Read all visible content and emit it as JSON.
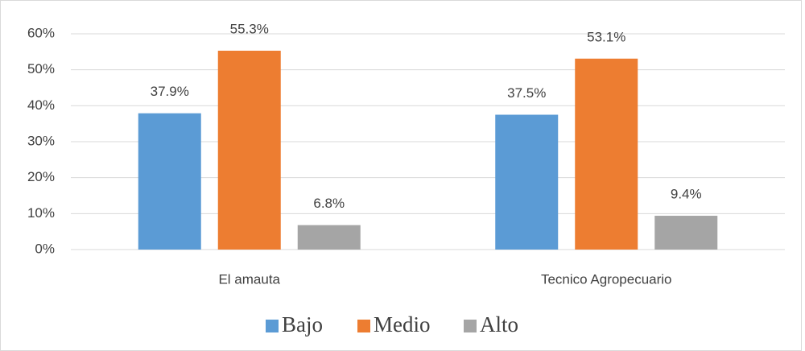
{
  "chart_data": {
    "type": "bar",
    "categories": [
      "El amauta",
      "Tecnico Agropecuario"
    ],
    "series": [
      {
        "name": "Bajo",
        "color": "#5b9bd5",
        "values": [
          37.9,
          37.5
        ],
        "value_labels": [
          "37.9%",
          "37.5%"
        ]
      },
      {
        "name": "Medio",
        "color": "#ed7d31",
        "values": [
          55.3,
          53.1
        ],
        "value_labels": [
          "55.3%",
          "53.1%"
        ]
      },
      {
        "name": "Alto",
        "color": "#a5a5a5",
        "values": [
          6.8,
          9.4
        ],
        "value_labels": [
          "6.8%",
          "9.4%"
        ]
      }
    ],
    "ylim": [
      0,
      60
    ],
    "yticks": [
      {
        "value": 0,
        "label": "0%"
      },
      {
        "value": 10,
        "label": "10%"
      },
      {
        "value": 20,
        "label": "20%"
      },
      {
        "value": 30,
        "label": "30%"
      },
      {
        "value": 40,
        "label": "40%"
      },
      {
        "value": 50,
        "label": "50%"
      },
      {
        "value": 60,
        "label": "60%"
      }
    ],
    "grid": true,
    "legend": "bottom"
  }
}
